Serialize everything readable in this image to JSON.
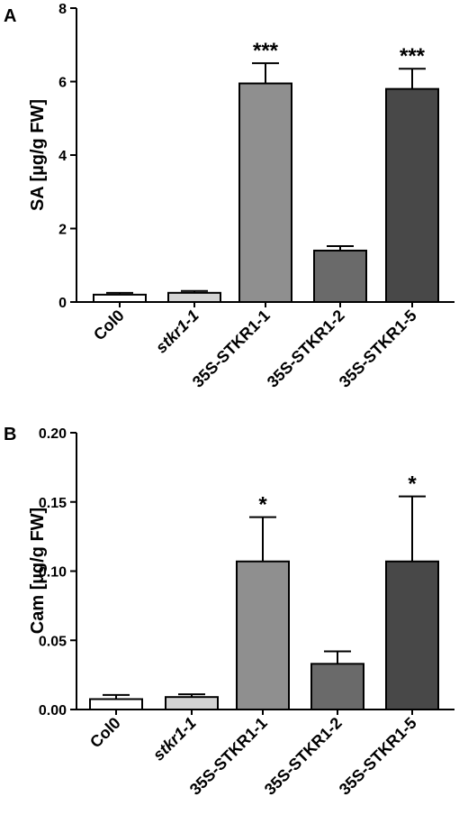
{
  "chart_data": [
    {
      "panel": "A",
      "type": "bar",
      "ylabel": "SA [µg/g FW]",
      "ylim": [
        0,
        8
      ],
      "yticks": [
        "0",
        "2",
        "4",
        "6",
        "8"
      ],
      "categories": [
        "Col0",
        "stkr1-1",
        "35S-STKR1-1",
        "35S-STKR1-2",
        "35S-STKR1-5"
      ],
      "italic_categories": [
        "stkr1-1"
      ],
      "values": [
        0.2,
        0.25,
        5.95,
        1.4,
        5.8
      ],
      "errors": [
        0.05,
        0.05,
        0.55,
        0.12,
        0.55
      ],
      "annotations": [
        "",
        "",
        "***",
        "",
        "***"
      ],
      "colors": [
        "#ffffff",
        "#d4d4d4",
        "#8f8f8f",
        "#6a6a6a",
        "#484848"
      ]
    },
    {
      "panel": "B",
      "type": "bar",
      "ylabel": "Cam [µg/g FW]",
      "ylim": [
        0,
        0.2
      ],
      "yticks": [
        "0.00",
        "0.05",
        "0.10",
        "0.15",
        "0.20"
      ],
      "categories": [
        "Col0",
        "stkr1-1",
        "35S-STKR1-1",
        "35S-STKR1-2",
        "35S-STKR1-5"
      ],
      "italic_categories": [
        "stkr1-1"
      ],
      "values": [
        0.0075,
        0.009,
        0.107,
        0.033,
        0.107
      ],
      "errors": [
        0.003,
        0.002,
        0.032,
        0.009,
        0.047
      ],
      "annotations": [
        "",
        "",
        "*",
        "",
        "*"
      ],
      "colors": [
        "#ffffff",
        "#d4d4d4",
        "#8f8f8f",
        "#6a6a6a",
        "#484848"
      ]
    }
  ]
}
